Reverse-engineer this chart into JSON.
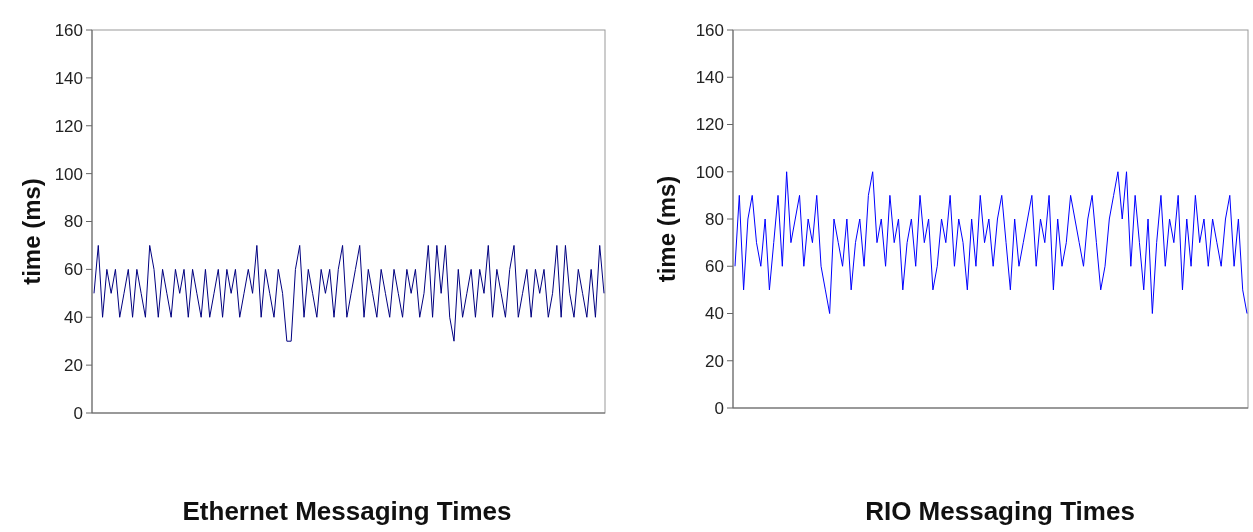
{
  "chart_data": [
    {
      "type": "line",
      "title": "Ethernet Messaging Times",
      "ylabel": "time (ms)",
      "categories": [
        null,
        null,
        null,
        null,
        null,
        null,
        null,
        null,
        null,
        null,
        null,
        null,
        null,
        null,
        null,
        null,
        null,
        null,
        null,
        null,
        null,
        null,
        null,
        null,
        null,
        null,
        null,
        null,
        null,
        null,
        null,
        null,
        null,
        null,
        null,
        null,
        null,
        null,
        null,
        null,
        null,
        null,
        null,
        null,
        null,
        null,
        null,
        null,
        null,
        null,
        null,
        null,
        null,
        null,
        null,
        null,
        null,
        null,
        null,
        null,
        null,
        null,
        null,
        null,
        null,
        null,
        null,
        null,
        null,
        null,
        null,
        null,
        null,
        null,
        null,
        null,
        null,
        null,
        null,
        null,
        null,
        null,
        null,
        null,
        null,
        null,
        null,
        null,
        null,
        null,
        null,
        null,
        null,
        null,
        null,
        null,
        null,
        null,
        null,
        null,
        null,
        null,
        null,
        null,
        null,
        null,
        null,
        null,
        null,
        null,
        null,
        null,
        null,
        null,
        null,
        null,
        null,
        null,
        null,
        null
      ],
      "ylim": [
        0,
        160
      ],
      "yticks": [
        0,
        20,
        40,
        60,
        80,
        100,
        120,
        140,
        160
      ],
      "series": [
        {
          "color": "#000080",
          "values": [
            50,
            70,
            40,
            60,
            50,
            60,
            40,
            50,
            60,
            40,
            60,
            50,
            40,
            70,
            60,
            40,
            60,
            50,
            40,
            60,
            50,
            60,
            40,
            60,
            50,
            40,
            60,
            40,
            50,
            60,
            40,
            60,
            50,
            60,
            40,
            50,
            60,
            50,
            70,
            40,
            60,
            50,
            40,
            60,
            50,
            30,
            30,
            60,
            70,
            40,
            60,
            50,
            40,
            60,
            50,
            60,
            40,
            60,
            70,
            40,
            50,
            60,
            70,
            40,
            60,
            50,
            40,
            60,
            50,
            40,
            60,
            50,
            40,
            60,
            50,
            60,
            40,
            50,
            70,
            40,
            70,
            50,
            70,
            40,
            30,
            60,
            40,
            50,
            60,
            40,
            60,
            50,
            70,
            40,
            60,
            50,
            40,
            60,
            70,
            40,
            50,
            60,
            40,
            60,
            50,
            60,
            40,
            50,
            70,
            40,
            70,
            50,
            40,
            60,
            50,
            40,
            60,
            40,
            70,
            50
          ]
        }
      ]
    },
    {
      "type": "line",
      "title": "RIO Messaging Times",
      "ylabel": "time (ms)",
      "categories": [
        null,
        null,
        null,
        null,
        null,
        null,
        null,
        null,
        null,
        null,
        null,
        null,
        null,
        null,
        null,
        null,
        null,
        null,
        null,
        null,
        null,
        null,
        null,
        null,
        null,
        null,
        null,
        null,
        null,
        null,
        null,
        null,
        null,
        null,
        null,
        null,
        null,
        null,
        null,
        null,
        null,
        null,
        null,
        null,
        null,
        null,
        null,
        null,
        null,
        null,
        null,
        null,
        null,
        null,
        null,
        null,
        null,
        null,
        null,
        null,
        null,
        null,
        null,
        null,
        null,
        null,
        null,
        null,
        null,
        null,
        null,
        null,
        null,
        null,
        null,
        null,
        null,
        null,
        null,
        null,
        null,
        null,
        null,
        null,
        null,
        null,
        null,
        null,
        null,
        null,
        null,
        null,
        null,
        null,
        null,
        null,
        null,
        null,
        null,
        null,
        null,
        null,
        null,
        null,
        null,
        null,
        null,
        null,
        null,
        null,
        null,
        null,
        null,
        null,
        null,
        null,
        null,
        null,
        null,
        null
      ],
      "ylim": [
        0,
        160
      ],
      "yticks": [
        0,
        20,
        40,
        60,
        80,
        100,
        120,
        140,
        160
      ],
      "series": [
        {
          "color": "#0000ff",
          "values": [
            60,
            90,
            50,
            80,
            90,
            70,
            60,
            80,
            50,
            70,
            90,
            60,
            100,
            70,
            80,
            90,
            60,
            80,
            70,
            90,
            60,
            50,
            40,
            80,
            70,
            60,
            80,
            50,
            70,
            80,
            60,
            90,
            100,
            70,
            80,
            60,
            90,
            70,
            80,
            50,
            70,
            80,
            60,
            90,
            70,
            80,
            50,
            60,
            80,
            70,
            90,
            60,
            80,
            70,
            50,
            80,
            60,
            90,
            70,
            80,
            60,
            80,
            90,
            70,
            50,
            80,
            60,
            70,
            80,
            90,
            60,
            80,
            70,
            90,
            50,
            80,
            60,
            70,
            90,
            80,
            70,
            60,
            80,
            90,
            70,
            50,
            60,
            80,
            90,
            100,
            80,
            100,
            60,
            90,
            70,
            50,
            80,
            40,
            70,
            90,
            60,
            80,
            70,
            90,
            50,
            80,
            60,
            90,
            70,
            80,
            60,
            80,
            70,
            60,
            80,
            90,
            60,
            80,
            50,
            40
          ]
        }
      ]
    }
  ]
}
